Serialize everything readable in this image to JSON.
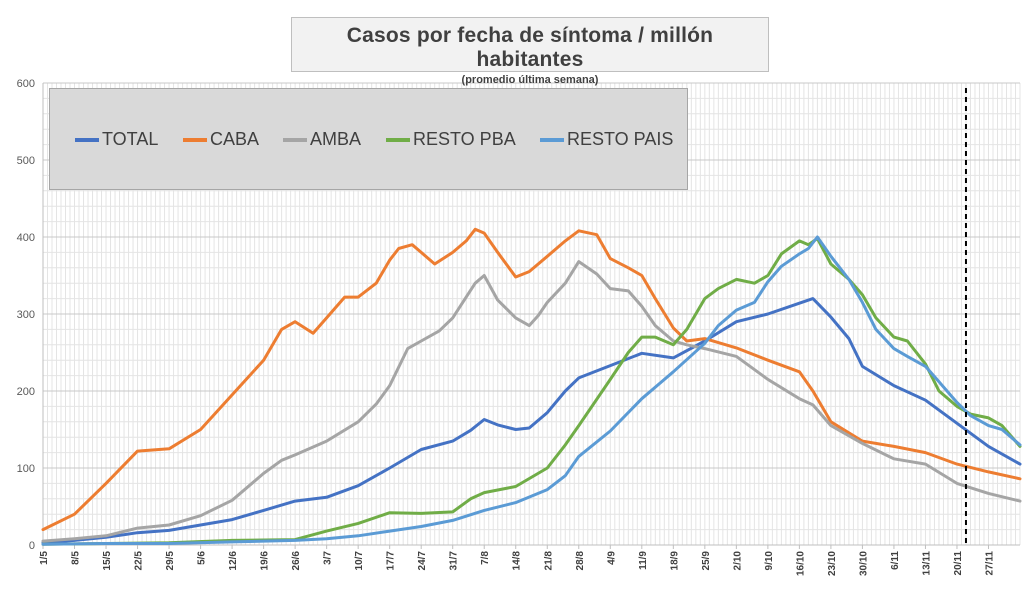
{
  "title": "Casos por fecha de síntoma / millón habitantes",
  "subtitle": "(promedio última semana)",
  "legend": [
    {
      "name": "TOTAL",
      "color": "#4472c4"
    },
    {
      "name": "CABA",
      "color": "#ed7d31"
    },
    {
      "name": "AMBA",
      "color": "#a5a5a5"
    },
    {
      "name": "RESTO PBA",
      "color": "#70ad47"
    },
    {
      "name": "RESTO PAIS",
      "color": "#5b9bd5"
    }
  ],
  "chart_data": {
    "type": "line",
    "ylim": [
      0,
      600
    ],
    "yticks": [
      0,
      100,
      200,
      300,
      400,
      500,
      600
    ],
    "x_range": [
      "1/5",
      "4/12"
    ],
    "xticks": [
      "1/5",
      "8/5",
      "15/5",
      "22/5",
      "29/5",
      "5/6",
      "12/6",
      "19/6",
      "26/6",
      "3/7",
      "10/7",
      "17/7",
      "24/7",
      "31/7",
      "7/8",
      "14/8",
      "21/8",
      "28/8",
      "4/9",
      "11/9",
      "18/9",
      "25/9",
      "2/10",
      "9/10",
      "16/10",
      "23/10",
      "30/10",
      "6/11",
      "13/11",
      "20/11",
      "27/11"
    ],
    "grid": true,
    "legend_position": "top-left",
    "reference_line": {
      "x": "22/11",
      "style": "dashed"
    },
    "series": [
      {
        "name": "TOTAL",
        "color": "#4472c4",
        "points": [
          [
            "1/5",
            3
          ],
          [
            "8/5",
            6
          ],
          [
            "15/5",
            10
          ],
          [
            "22/5",
            16
          ],
          [
            "29/5",
            19
          ],
          [
            "5/6",
            26
          ],
          [
            "12/6",
            33
          ],
          [
            "19/6",
            45
          ],
          [
            "26/6",
            57
          ],
          [
            "3/7",
            62
          ],
          [
            "10/7",
            77
          ],
          [
            "17/7",
            100
          ],
          [
            "24/7",
            124
          ],
          [
            "31/7",
            135
          ],
          [
            "4/8",
            149
          ],
          [
            "7/8",
            163
          ],
          [
            "10/8",
            156
          ],
          [
            "14/8",
            150
          ],
          [
            "17/8",
            152
          ],
          [
            "21/8",
            172
          ],
          [
            "25/8",
            200
          ],
          [
            "28/8",
            217
          ],
          [
            "4/9",
            233
          ],
          [
            "11/9",
            249
          ],
          [
            "18/9",
            243
          ],
          [
            "25/9",
            265
          ],
          [
            "2/10",
            290
          ],
          [
            "9/10",
            300
          ],
          [
            "16/10",
            314
          ],
          [
            "19/10",
            320
          ],
          [
            "23/10",
            296
          ],
          [
            "27/10",
            268
          ],
          [
            "30/10",
            232
          ],
          [
            "6/11",
            207
          ],
          [
            "13/11",
            188
          ],
          [
            "20/11",
            158
          ],
          [
            "27/11",
            128
          ],
          [
            "4/12",
            105
          ]
        ]
      },
      {
        "name": "CABA",
        "color": "#ed7d31",
        "points": [
          [
            "1/5",
            20
          ],
          [
            "8/5",
            40
          ],
          [
            "15/5",
            80
          ],
          [
            "20/5",
            110
          ],
          [
            "22/5",
            122
          ],
          [
            "29/5",
            125
          ],
          [
            "5/6",
            150
          ],
          [
            "12/6",
            195
          ],
          [
            "19/6",
            240
          ],
          [
            "23/6",
            280
          ],
          [
            "26/6",
            290
          ],
          [
            "30/6",
            275
          ],
          [
            "3/7",
            295
          ],
          [
            "7/7",
            322
          ],
          [
            "10/7",
            322
          ],
          [
            "14/7",
            340
          ],
          [
            "17/7",
            370
          ],
          [
            "19/7",
            385
          ],
          [
            "22/7",
            390
          ],
          [
            "24/7",
            380
          ],
          [
            "27/7",
            365
          ],
          [
            "31/7",
            380
          ],
          [
            "3/8",
            395
          ],
          [
            "5/8",
            410
          ],
          [
            "7/8",
            405
          ],
          [
            "10/8",
            380
          ],
          [
            "14/8",
            348
          ],
          [
            "17/8",
            355
          ],
          [
            "21/8",
            375
          ],
          [
            "25/8",
            395
          ],
          [
            "28/8",
            408
          ],
          [
            "1/9",
            403
          ],
          [
            "4/9",
            372
          ],
          [
            "8/9",
            360
          ],
          [
            "11/9",
            350
          ],
          [
            "14/9",
            320
          ],
          [
            "18/9",
            282
          ],
          [
            "21/9",
            265
          ],
          [
            "25/9",
            268
          ],
          [
            "2/10",
            256
          ],
          [
            "9/10",
            240
          ],
          [
            "16/10",
            225
          ],
          [
            "19/10",
            200
          ],
          [
            "23/10",
            160
          ],
          [
            "30/10",
            135
          ],
          [
            "6/11",
            128
          ],
          [
            "13/11",
            120
          ],
          [
            "20/11",
            105
          ],
          [
            "27/11",
            95
          ],
          [
            "4/12",
            86
          ]
        ]
      },
      {
        "name": "AMBA",
        "color": "#a5a5a5",
        "points": [
          [
            "1/5",
            5
          ],
          [
            "8/5",
            8
          ],
          [
            "15/5",
            12
          ],
          [
            "22/5",
            22
          ],
          [
            "29/5",
            26
          ],
          [
            "5/6",
            38
          ],
          [
            "12/6",
            58
          ],
          [
            "19/6",
            93
          ],
          [
            "23/6",
            110
          ],
          [
            "26/6",
            117
          ],
          [
            "3/7",
            135
          ],
          [
            "10/7",
            160
          ],
          [
            "14/7",
            183
          ],
          [
            "17/7",
            207
          ],
          [
            "21/7",
            255
          ],
          [
            "24/7",
            265
          ],
          [
            "28/7",
            278
          ],
          [
            "31/7",
            295
          ],
          [
            "3/8",
            322
          ],
          [
            "5/8",
            340
          ],
          [
            "7/8",
            350
          ],
          [
            "10/8",
            318
          ],
          [
            "14/8",
            295
          ],
          [
            "17/8",
            285
          ],
          [
            "19/8",
            298
          ],
          [
            "21/8",
            315
          ],
          [
            "25/8",
            340
          ],
          [
            "28/8",
            368
          ],
          [
            "1/9",
            352
          ],
          [
            "4/9",
            333
          ],
          [
            "8/9",
            330
          ],
          [
            "11/9",
            310
          ],
          [
            "14/9",
            285
          ],
          [
            "18/9",
            265
          ],
          [
            "21/9",
            260
          ],
          [
            "25/9",
            255
          ],
          [
            "2/10",
            245
          ],
          [
            "9/10",
            215
          ],
          [
            "16/10",
            190
          ],
          [
            "19/10",
            182
          ],
          [
            "23/10",
            155
          ],
          [
            "30/10",
            132
          ],
          [
            "6/11",
            112
          ],
          [
            "13/11",
            105
          ],
          [
            "20/11",
            80
          ],
          [
            "27/11",
            67
          ],
          [
            "4/12",
            57
          ]
        ]
      },
      {
        "name": "RESTO PBA",
        "color": "#70ad47",
        "points": [
          [
            "1/5",
            1
          ],
          [
            "15/5",
            2
          ],
          [
            "29/5",
            3
          ],
          [
            "12/6",
            6
          ],
          [
            "26/6",
            7
          ],
          [
            "3/7",
            18
          ],
          [
            "10/7",
            28
          ],
          [
            "17/7",
            42
          ],
          [
            "24/7",
            41
          ],
          [
            "31/7",
            43
          ],
          [
            "4/8",
            60
          ],
          [
            "7/8",
            68
          ],
          [
            "14/8",
            76
          ],
          [
            "21/8",
            100
          ],
          [
            "25/8",
            130
          ],
          [
            "28/8",
            155
          ],
          [
            "4/9",
            215
          ],
          [
            "8/9",
            250
          ],
          [
            "11/9",
            270
          ],
          [
            "14/9",
            270
          ],
          [
            "18/9",
            260
          ],
          [
            "21/9",
            280
          ],
          [
            "25/9",
            320
          ],
          [
            "28/9",
            333
          ],
          [
            "2/10",
            345
          ],
          [
            "6/10",
            340
          ],
          [
            "9/10",
            350
          ],
          [
            "12/10",
            378
          ],
          [
            "16/10",
            395
          ],
          [
            "18/10",
            390
          ],
          [
            "20/10",
            398
          ],
          [
            "23/10",
            365
          ],
          [
            "27/10",
            345
          ],
          [
            "30/10",
            325
          ],
          [
            "2/11",
            295
          ],
          [
            "6/11",
            270
          ],
          [
            "9/11",
            265
          ],
          [
            "13/11",
            235
          ],
          [
            "16/11",
            200
          ],
          [
            "20/11",
            180
          ],
          [
            "23/11",
            170
          ],
          [
            "27/11",
            165
          ],
          [
            "30/11",
            155
          ],
          [
            "4/12",
            128
          ]
        ]
      },
      {
        "name": "RESTO PAIS",
        "color": "#5b9bd5",
        "points": [
          [
            "1/5",
            1
          ],
          [
            "15/5",
            2
          ],
          [
            "29/5",
            2
          ],
          [
            "12/6",
            4
          ],
          [
            "26/6",
            6
          ],
          [
            "3/7",
            8
          ],
          [
            "10/7",
            12
          ],
          [
            "17/7",
            18
          ],
          [
            "24/7",
            24
          ],
          [
            "31/7",
            32
          ],
          [
            "7/8",
            45
          ],
          [
            "14/8",
            55
          ],
          [
            "21/8",
            72
          ],
          [
            "25/8",
            90
          ],
          [
            "28/8",
            115
          ],
          [
            "4/9",
            148
          ],
          [
            "11/9",
            190
          ],
          [
            "18/9",
            225
          ],
          [
            "25/9",
            262
          ],
          [
            "28/9",
            285
          ],
          [
            "2/10",
            305
          ],
          [
            "6/10",
            315
          ],
          [
            "9/10",
            342
          ],
          [
            "12/10",
            362
          ],
          [
            "16/10",
            378
          ],
          [
            "18/10",
            385
          ],
          [
            "20/10",
            400
          ],
          [
            "23/10",
            375
          ],
          [
            "27/10",
            345
          ],
          [
            "30/10",
            315
          ],
          [
            "2/11",
            280
          ],
          [
            "6/11",
            255
          ],
          [
            "9/11",
            245
          ],
          [
            "13/11",
            232
          ],
          [
            "16/11",
            212
          ],
          [
            "20/11",
            185
          ],
          [
            "23/11",
            168
          ],
          [
            "27/11",
            155
          ],
          [
            "30/11",
            150
          ],
          [
            "4/12",
            130
          ]
        ]
      }
    ]
  }
}
